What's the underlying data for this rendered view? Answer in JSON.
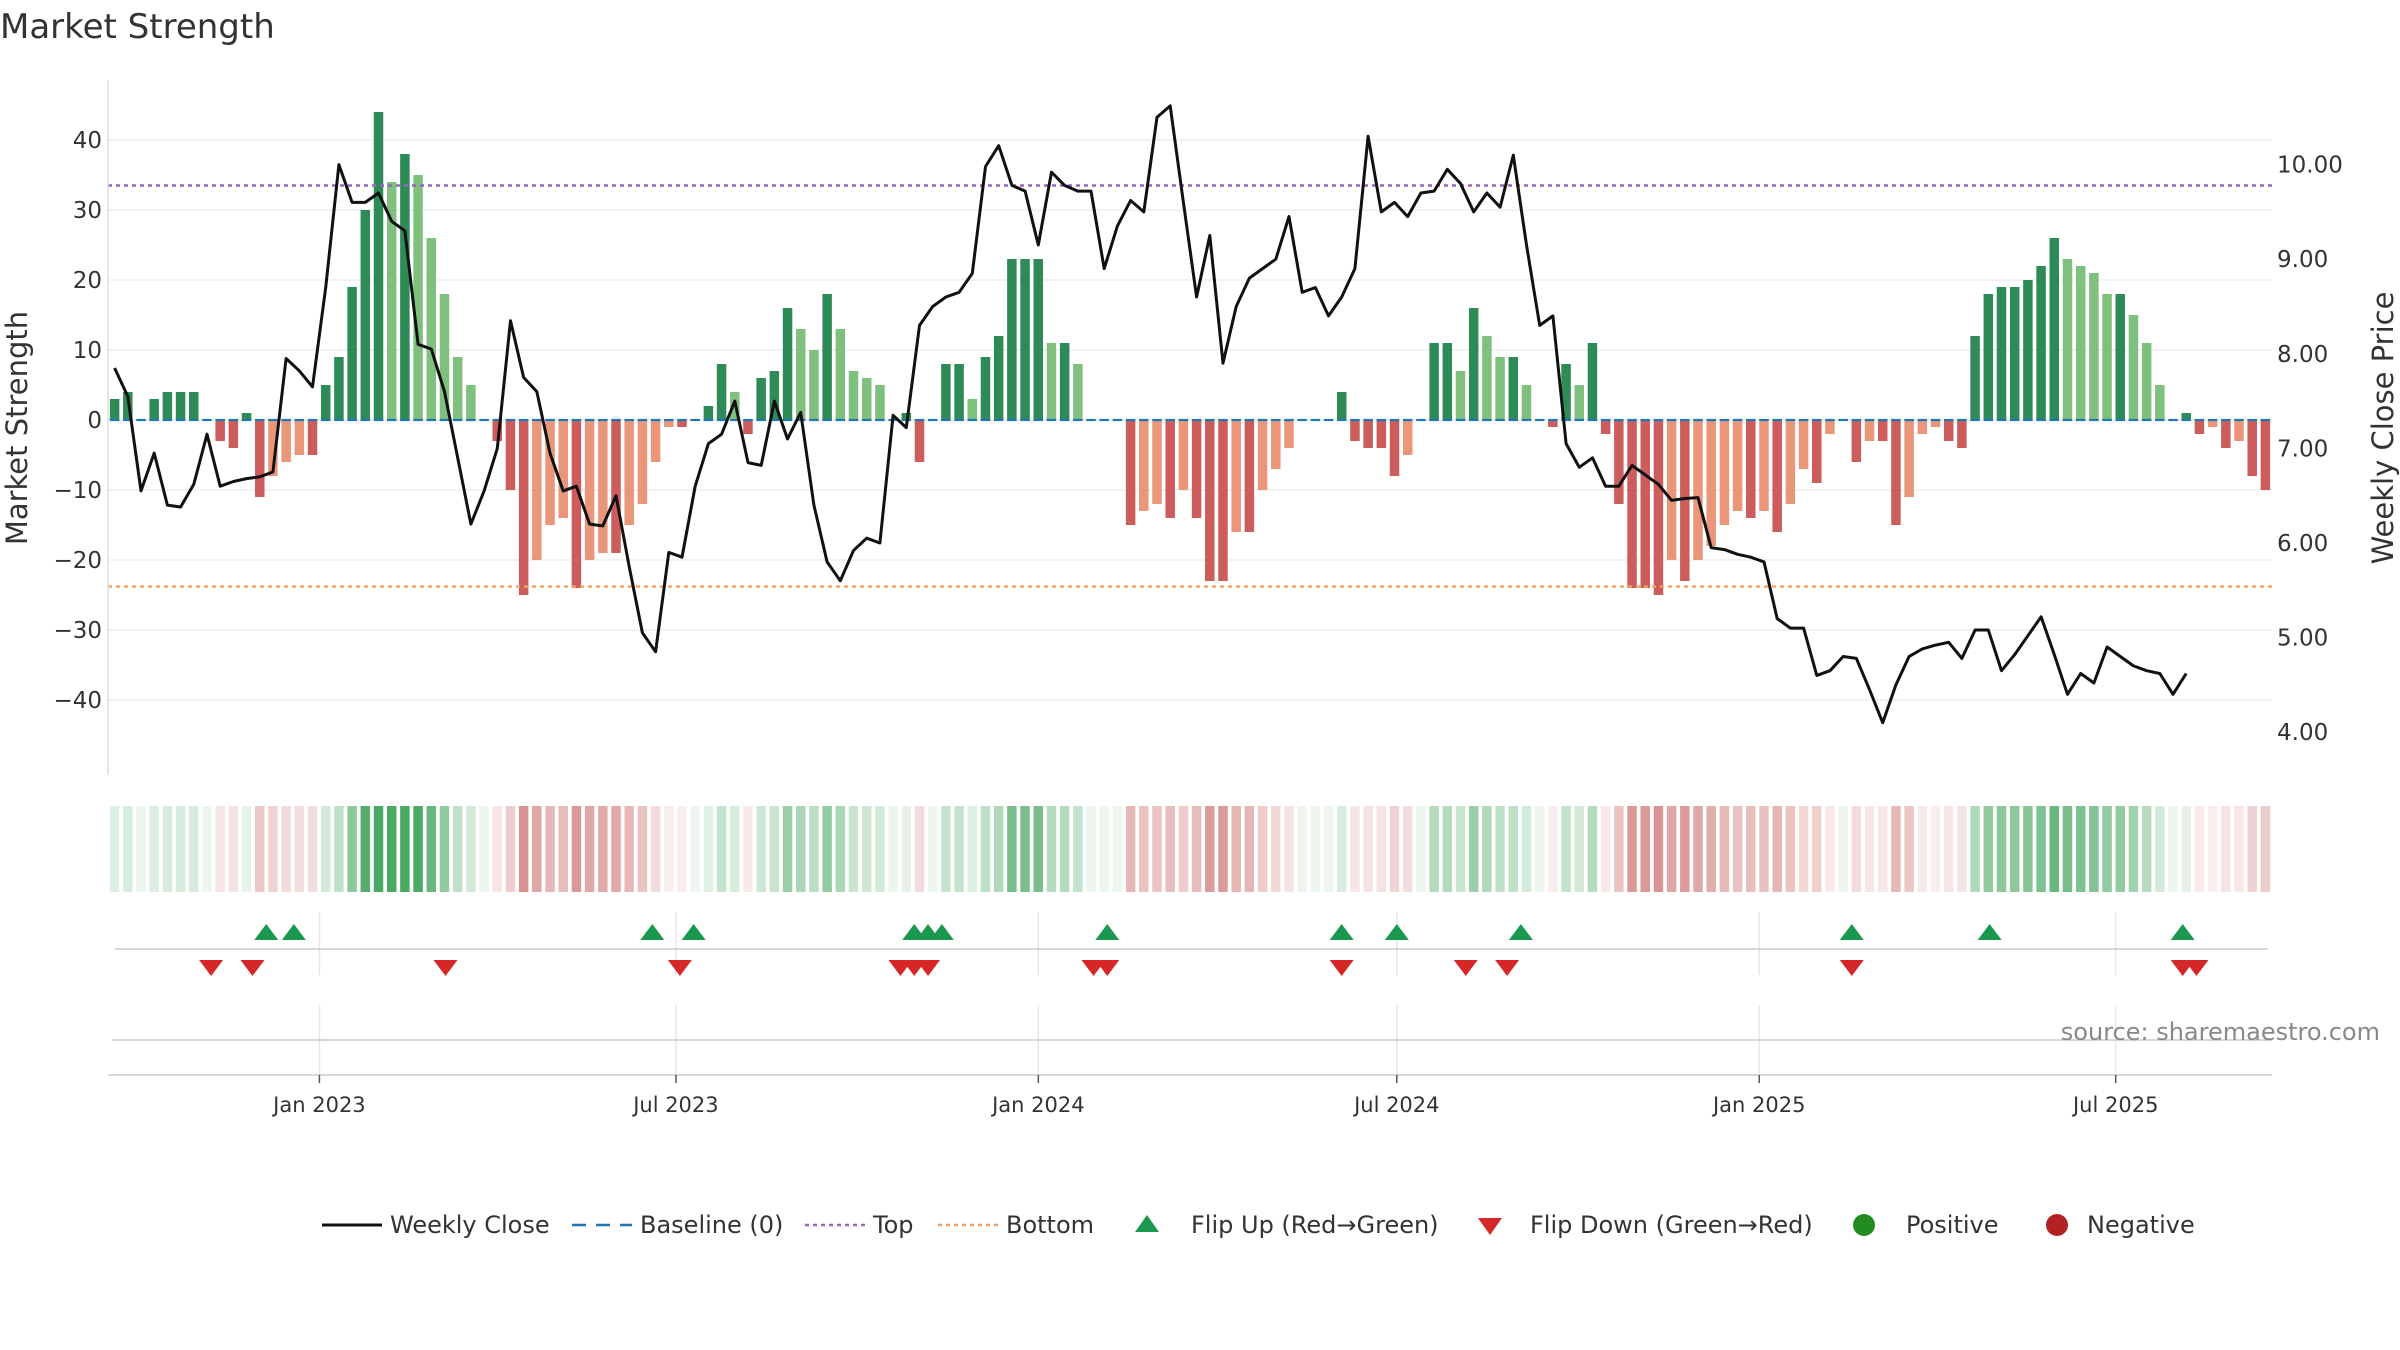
{
  "chart_data": {
    "type": "bar",
    "title": "Market Strength",
    "ylabel_left": "Market Strength",
    "ylabel_right": "Weekly Close Price",
    "left_ylim": [
      -50,
      50
    ],
    "left_ticks": [
      40,
      30,
      20,
      10,
      0,
      -10,
      -20,
      -30,
      -40
    ],
    "left_tick_labels": [
      "40",
      "30",
      "20",
      "10",
      "0",
      "−10",
      "−20",
      "−30",
      "−40"
    ],
    "right_ylim": [
      3.6,
      11.0
    ],
    "right_ticks": [
      10,
      9,
      8,
      7,
      6,
      5,
      4
    ],
    "right_tick_labels": [
      "10.00",
      "9.00",
      "8.00",
      "7.00",
      "6.00",
      "5.00",
      "4.00"
    ],
    "top_line": 33.5,
    "bottom_line": -23.8,
    "baseline": 0,
    "x_start": "2022-09-19",
    "x_end": "2025-09-15",
    "x_ticks": [
      {
        "date": "2023-01-01",
        "label": "Jan 2023"
      },
      {
        "date": "2023-07-01",
        "label": "Jul 2023"
      },
      {
        "date": "2024-01-01",
        "label": "Jan 2024"
      },
      {
        "date": "2024-07-01",
        "label": "Jul 2024"
      },
      {
        "date": "2025-01-01",
        "label": "Jan 2025"
      },
      {
        "date": "2025-07-01",
        "label": "Jul 2025"
      }
    ],
    "strength": [
      3,
      4,
      0,
      3,
      4,
      4,
      4,
      0,
      -3,
      -4,
      1,
      -11,
      -8,
      -6,
      -5,
      -5,
      5,
      9,
      19,
      30,
      44,
      34,
      38,
      35,
      26,
      18,
      9,
      5,
      0,
      -3,
      -10,
      -25,
      -20,
      -15,
      -14,
      -24,
      -20,
      -19,
      -19,
      -15,
      -12,
      -6,
      -1,
      -1,
      0,
      2,
      8,
      4,
      -2,
      6,
      7,
      16,
      13,
      10,
      18,
      13,
      7,
      6,
      5,
      0,
      1,
      -6,
      0,
      8,
      8,
      3,
      9,
      12,
      23,
      23,
      23,
      11,
      11,
      8,
      0,
      0,
      0,
      -15,
      -13,
      -12,
      -14,
      -10,
      -14,
      -23,
      -23,
      -16,
      -16,
      -10,
      -7,
      -4,
      0,
      0,
      0,
      4,
      -3,
      -4,
      -4,
      -8,
      -5,
      0,
      11,
      11,
      7,
      16,
      12,
      9,
      9,
      5,
      0,
      -1,
      8,
      5,
      11,
      -2,
      -12,
      -24,
      -24,
      -25,
      -20,
      -23,
      -20,
      -18,
      -15,
      -13,
      -14,
      -13,
      -16,
      -12,
      -7,
      -9,
      -2,
      0,
      -6,
      -3,
      -3,
      -15,
      -11,
      -2,
      -1,
      -3,
      -4,
      12,
      18,
      19,
      19,
      20,
      22,
      26,
      23,
      22,
      21,
      18,
      18,
      15,
      11,
      5,
      0,
      1,
      -2,
      -1,
      -4,
      -3,
      -8,
      -10
    ],
    "weekly_close": [
      7.85,
      7.55,
      6.55,
      6.95,
      6.4,
      6.38,
      6.62,
      7.15,
      6.6,
      6.65,
      6.68,
      6.7,
      6.75,
      7.95,
      7.82,
      7.65,
      8.7,
      10.0,
      9.6,
      9.6,
      9.7,
      9.4,
      9.3,
      8.1,
      8.05,
      7.6,
      6.9,
      6.2,
      6.55,
      7.0,
      8.35,
      7.75,
      7.6,
      6.95,
      6.55,
      6.6,
      6.2,
      6.18,
      6.5,
      5.75,
      5.05,
      4.85,
      5.9,
      5.85,
      6.6,
      7.05,
      7.15,
      7.5,
      6.85,
      6.82,
      7.5,
      7.1,
      7.38,
      6.4,
      5.8,
      5.6,
      5.92,
      6.05,
      6.0,
      7.35,
      7.22,
      8.3,
      8.5,
      8.6,
      8.65,
      8.85,
      9.98,
      10.2,
      9.78,
      9.72,
      9.15,
      9.92,
      9.78,
      9.72,
      9.72,
      8.9,
      9.35,
      9.62,
      9.5,
      10.5,
      10.62,
      9.6,
      8.6,
      9.25,
      7.9,
      8.5,
      8.8,
      8.9,
      9.0,
      9.45,
      8.65,
      8.7,
      8.4,
      8.6,
      8.9,
      10.3,
      9.5,
      9.6,
      9.45,
      9.7,
      9.72,
      9.95,
      9.8,
      9.5,
      9.7,
      9.55,
      10.1,
      9.15,
      8.3,
      8.4,
      7.05,
      6.8,
      6.9,
      6.6,
      6.6,
      6.82,
      6.72,
      6.62,
      6.45,
      6.47,
      6.48,
      5.95,
      5.93,
      5.88,
      5.85,
      5.8,
      5.2,
      5.1,
      5.1,
      4.6,
      4.65,
      4.8,
      4.78,
      4.45,
      4.1,
      4.5,
      4.8,
      4.88,
      4.92,
      4.95,
      4.78,
      5.08,
      5.08,
      4.65,
      4.82,
      5.02,
      5.22,
      4.82,
      4.4,
      4.62,
      4.52,
      4.9,
      4.8,
      4.7,
      4.65,
      4.62,
      4.4,
      4.62
    ],
    "flip_up": [
      "2022-12-05",
      "2022-12-19",
      "2023-06-19",
      "2023-07-10",
      "2023-10-30",
      "2023-11-06",
      "2023-11-13",
      "2024-02-05",
      "2024-06-03",
      "2024-07-01",
      "2024-09-02",
      "2025-02-17",
      "2025-04-28",
      "2025-08-04"
    ],
    "flip_down": [
      "2022-11-07",
      "2022-11-28",
      "2023-03-06",
      "2023-07-03",
      "2023-10-23",
      "2023-10-30",
      "2023-11-06",
      "2024-01-29",
      "2024-02-05",
      "2024-06-03",
      "2024-08-05",
      "2024-08-26",
      "2025-02-17",
      "2025-08-04",
      "2025-08-11"
    ],
    "source": "source: sharemaestro.com",
    "legend": [
      {
        "key": "close",
        "label": "Weekly Close"
      },
      {
        "key": "baseline",
        "label": "Baseline (0)"
      },
      {
        "key": "top",
        "label": "Top"
      },
      {
        "key": "bottom",
        "label": "Bottom"
      },
      {
        "key": "flipup",
        "label": "Flip Up (Red→Green)"
      },
      {
        "key": "flipdown",
        "label": "Flip Down (Green→Red)"
      },
      {
        "key": "positive",
        "label": "Positive"
      },
      {
        "key": "negative",
        "label": "Negative"
      }
    ],
    "colors": {
      "strong_green": "#2e8b57",
      "light_green": "#7fc07f",
      "strong_red": "#cd5c5c",
      "light_red": "#e9967a",
      "close": "#111111",
      "baseline": "#1f77b4",
      "top": "#9467bd",
      "bottom": "#f4a460",
      "flip_up": "#1a9850",
      "flip_down": "#d62728",
      "positive": "#228b22",
      "negative": "#b22222"
    }
  }
}
